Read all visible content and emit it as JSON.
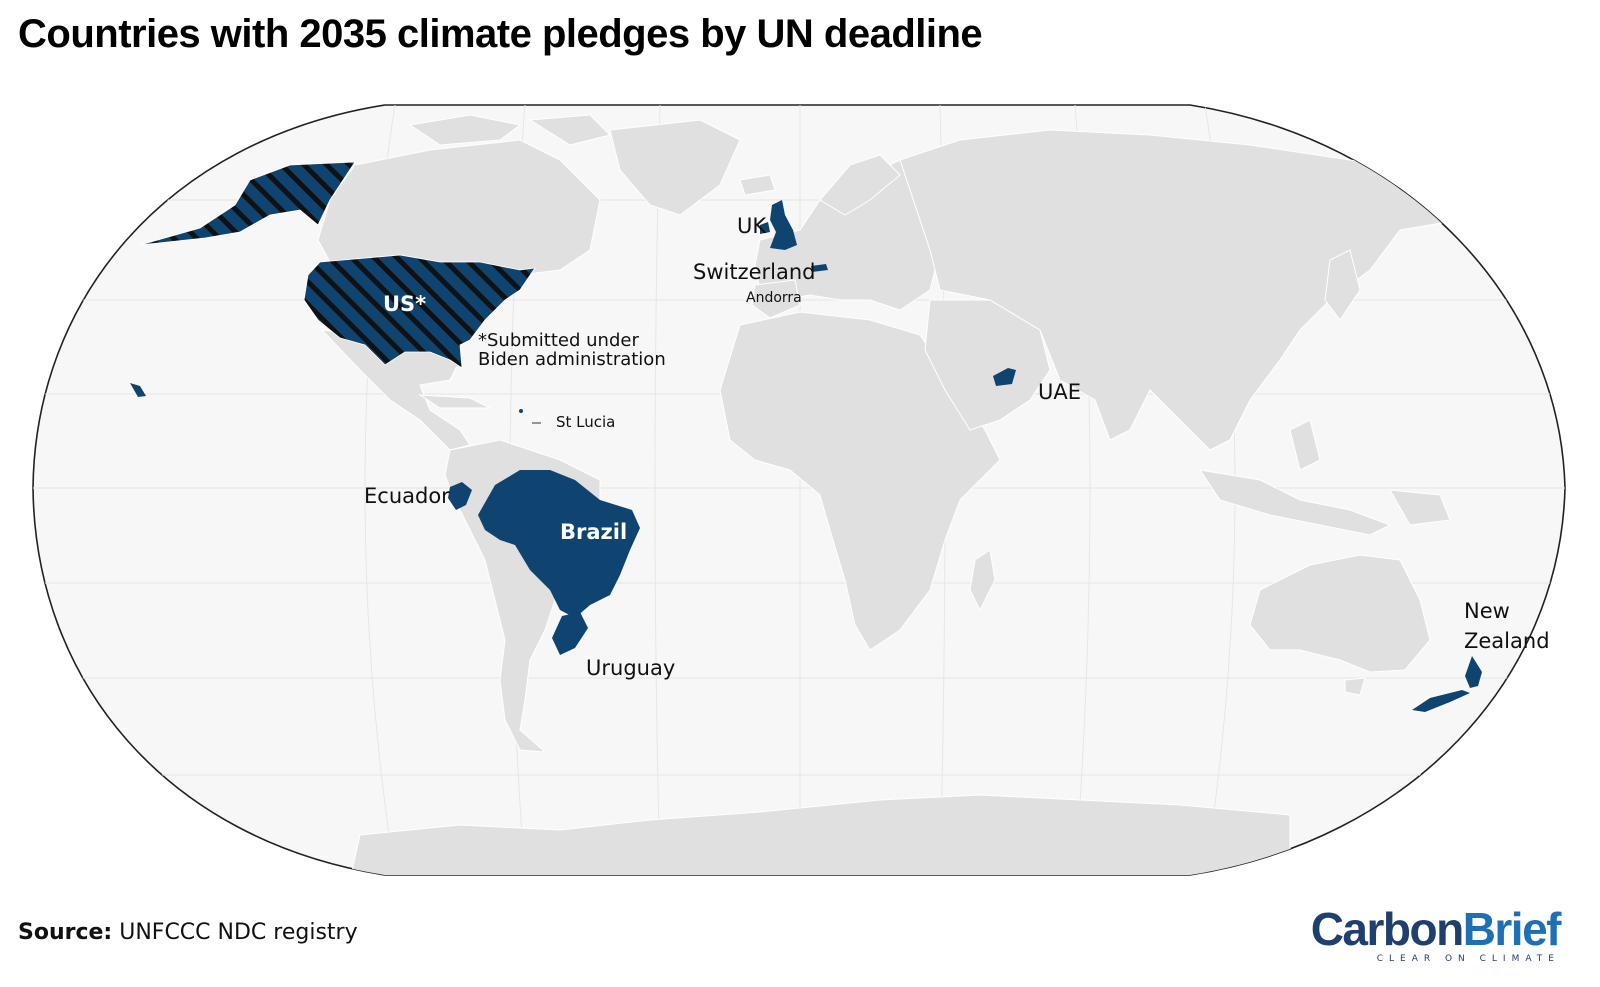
{
  "title": "Countries with 2035 climate pledges by UN deadline",
  "colors": {
    "pledged": "#0e446f",
    "land": "#e0e0e0",
    "ocean": "#f7f7f7",
    "border": "#ffffff",
    "outline": "#222222"
  },
  "labels": {
    "us": "US*",
    "us_note_line1": "*Submitted under",
    "us_note_line2": "Biden administration",
    "uk": "UK",
    "switzerland": "Switzerland",
    "andorra": "Andorra",
    "uae": "UAE",
    "st_lucia": "St Lucia",
    "ecuador": "Ecuador",
    "brazil": "Brazil",
    "uruguay": "Uruguay",
    "new_zealand_line1": "New",
    "new_zealand_line2": "Zealand"
  },
  "source": {
    "label": "Source:",
    "text": "UNFCCC NDC registry"
  },
  "brand": {
    "part1": "Carbon",
    "part2": "Brief",
    "tagline": "CLEAR ON CLIMATE"
  }
}
